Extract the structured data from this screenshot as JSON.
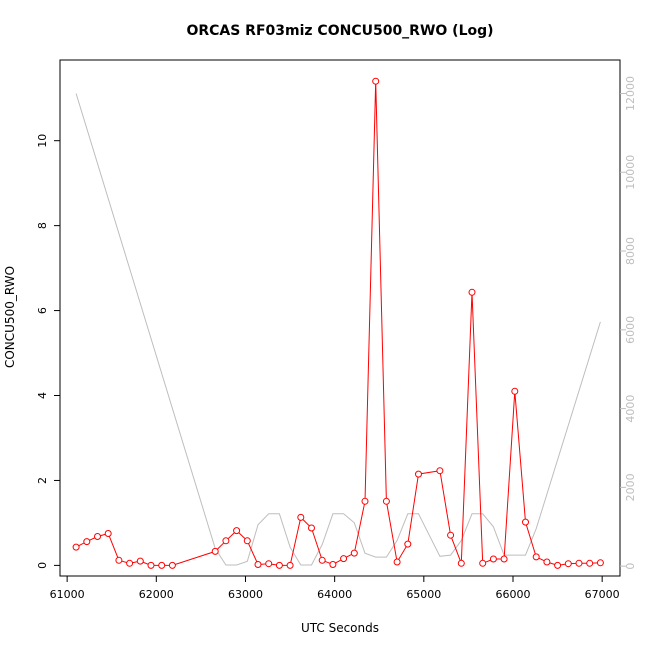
{
  "chart_data": {
    "type": "line",
    "title": "ORCAS RF03miz CONCU500_RWO (Log)",
    "xlabel": "UTC Seconds",
    "ylabel": "CONCU500_RWO",
    "xlim": [
      60920,
      67200
    ],
    "ylim": [
      -0.25,
      11.9
    ],
    "y2lim": [
      -250,
      12850
    ],
    "x_ticks": [
      61000,
      62000,
      63000,
      64000,
      65000,
      66000,
      67000
    ],
    "y_ticks": [
      0,
      2,
      4,
      6,
      8,
      10
    ],
    "y2_ticks": [
      0,
      2000,
      4000,
      6000,
      8000,
      10000,
      12000
    ],
    "grid": false,
    "colors": {
      "primary": "#ff0000",
      "secondary": "#bebebe",
      "axis": "#000000"
    },
    "series": [
      {
        "axis": "left",
        "style": "line+points",
        "points": [
          [
            61100,
            0.43
          ],
          [
            61220,
            0.56
          ],
          [
            61340,
            0.68
          ],
          [
            61460,
            0.75
          ],
          [
            61580,
            0.12
          ],
          [
            61700,
            0.05
          ],
          [
            61820,
            0.1
          ],
          [
            61940,
            0.0
          ],
          [
            62060,
            0.0
          ],
          [
            62180,
            0.0
          ],
          [
            62660,
            0.33
          ],
          [
            62780,
            0.58
          ],
          [
            62900,
            0.82
          ],
          [
            63020,
            0.58
          ],
          [
            63140,
            0.02
          ],
          [
            63260,
            0.04
          ],
          [
            63380,
            0.0
          ],
          [
            63500,
            0.0
          ],
          [
            63620,
            1.13
          ],
          [
            63740,
            0.88
          ],
          [
            63860,
            0.12
          ],
          [
            63980,
            0.02
          ],
          [
            64100,
            0.16
          ],
          [
            64220,
            0.29
          ],
          [
            64340,
            1.51
          ],
          [
            64460,
            11.4
          ],
          [
            64580,
            1.51
          ],
          [
            64700,
            0.08
          ],
          [
            64820,
            0.5
          ],
          [
            64940,
            2.15
          ],
          [
            65180,
            2.23
          ],
          [
            65300,
            0.71
          ],
          [
            65420,
            0.05
          ],
          [
            65540,
            6.43
          ],
          [
            65660,
            0.05
          ],
          [
            65780,
            0.15
          ],
          [
            65900,
            0.15
          ],
          [
            66020,
            4.1
          ],
          [
            66140,
            1.02
          ],
          [
            66260,
            0.2
          ],
          [
            66380,
            0.08
          ],
          [
            66500,
            0.0
          ],
          [
            66620,
            0.04
          ],
          [
            66740,
            0.05
          ],
          [
            66860,
            0.05
          ],
          [
            66980,
            0.06
          ]
        ]
      },
      {
        "axis": "right",
        "style": "line",
        "points": [
          [
            61100,
            12000
          ],
          [
            62660,
            450
          ],
          [
            62780,
            30
          ],
          [
            62900,
            30
          ],
          [
            63020,
            120
          ],
          [
            63140,
            1050
          ],
          [
            63260,
            1330
          ],
          [
            63380,
            1330
          ],
          [
            63500,
            480
          ],
          [
            63620,
            30
          ],
          [
            63740,
            30
          ],
          [
            63860,
            550
          ],
          [
            63980,
            1330
          ],
          [
            64100,
            1330
          ],
          [
            64220,
            1100
          ],
          [
            64340,
            330
          ],
          [
            64460,
            230
          ],
          [
            64580,
            230
          ],
          [
            64700,
            650
          ],
          [
            64820,
            1330
          ],
          [
            64940,
            1330
          ],
          [
            65180,
            250
          ],
          [
            65300,
            280
          ],
          [
            65420,
            650
          ],
          [
            65540,
            1330
          ],
          [
            65660,
            1330
          ],
          [
            65780,
            1000
          ],
          [
            65900,
            280
          ],
          [
            66020,
            280
          ],
          [
            66140,
            280
          ],
          [
            66260,
            950
          ],
          [
            66980,
            6200
          ]
        ]
      }
    ]
  }
}
